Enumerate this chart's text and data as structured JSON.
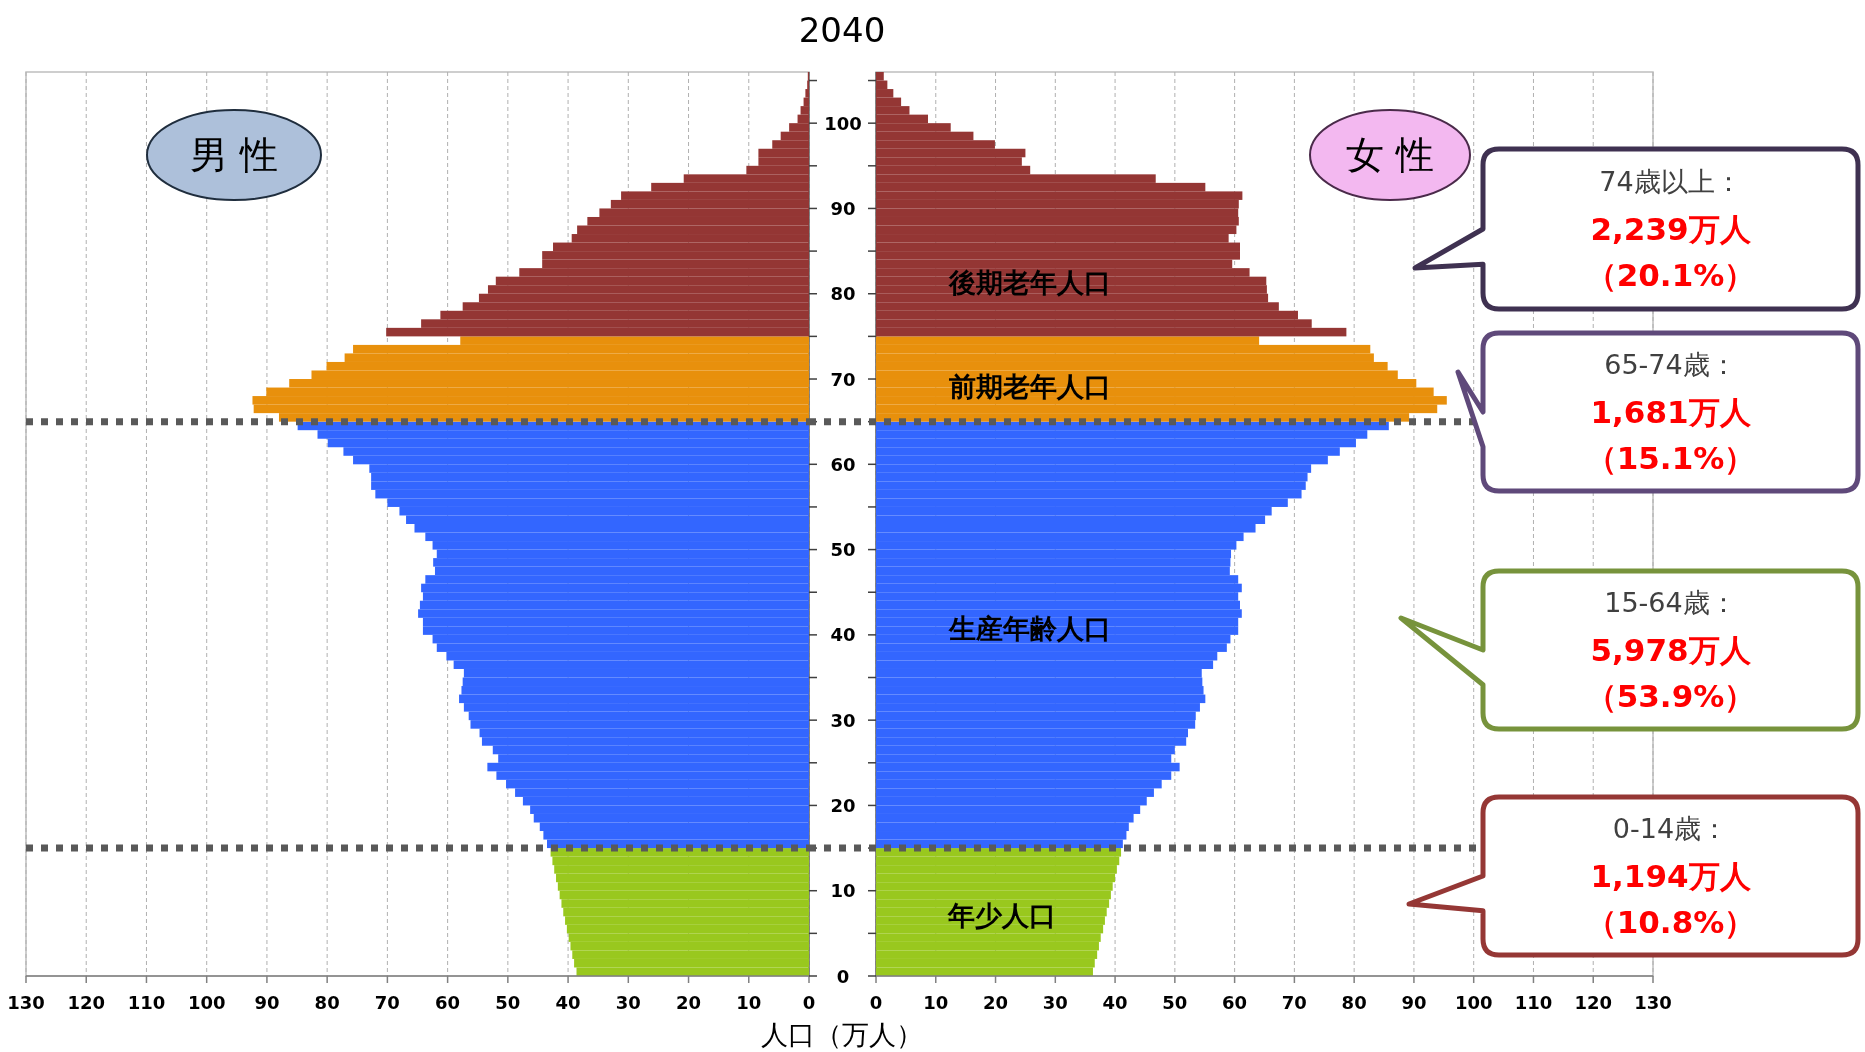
{
  "chart_data": [
    {
      "type": "bar",
      "orientation": "horizontal",
      "title": "2040",
      "subtitle": "男 性",
      "xlim": [
        130,
        0
      ],
      "xticks": [
        130,
        120,
        110,
        100,
        90,
        80,
        70,
        60,
        50,
        40,
        30,
        20,
        10,
        0
      ],
      "ylim": [
        0,
        106
      ],
      "yticks": [
        0,
        {
          "value": 5,
          "label": null
        },
        10,
        {
          "value": 15,
          "label": null
        },
        20,
        {
          "value": 25,
          "label": null
        },
        30,
        {
          "value": 35,
          "label": null
        },
        40,
        {
          "value": 45,
          "label": null
        },
        50,
        {
          "value": 55,
          "label": null
        },
        60,
        {
          "value": 65,
          "label": null
        },
        70,
        {
          "value": 75,
          "label": null
        },
        80,
        {
          "value": 85,
          "label": null
        },
        90,
        {
          "value": 95,
          "label": null
        },
        100,
        {
          "value": 105,
          "label": null
        }
      ],
      "grid": "x",
      "tick_labels": "x",
      "ref_lines": [
        {
          "axis": "y",
          "value": 15,
          "color": "#595959",
          "line_style": "dotted"
        },
        {
          "axis": "y",
          "value": 65,
          "color": "#595959",
          "line_style": "dotted"
        }
      ],
      "series": [
        {
          "color": "#99c81e",
          "x": [
            0,
            1,
            2,
            3,
            4,
            5,
            6,
            7,
            8,
            9,
            10,
            11,
            12,
            13,
            14
          ],
          "values": [
            38.6,
            39.0,
            39.3,
            39.6,
            39.9,
            40.2,
            40.5,
            40.8,
            41.1,
            41.4,
            41.7,
            42.0,
            42.3,
            42.6,
            42.9
          ]
        },
        {
          "color": "#3366ff",
          "x": [
            15,
            16,
            17,
            18,
            19,
            20,
            21,
            22,
            23,
            24,
            25,
            26,
            27,
            28,
            29,
            30,
            31,
            32,
            33,
            34,
            35,
            36,
            37,
            38,
            39,
            40,
            41,
            42,
            43,
            44,
            45,
            46,
            47,
            48,
            49,
            50,
            51,
            52,
            53,
            54,
            55,
            56,
            57,
            58,
            59,
            60,
            61,
            62,
            63,
            64
          ],
          "values": [
            43.5,
            44.1,
            44.7,
            45.7,
            46.3,
            47.5,
            48.8,
            50.3,
            51.9,
            53.4,
            51.6,
            52.5,
            54.3,
            54.7,
            56.2,
            56.5,
            57.3,
            58.1,
            57.7,
            57.5,
            57.3,
            59.0,
            60.2,
            61.8,
            62.5,
            64.1,
            64.1,
            64.9,
            64.6,
            64.1,
            64.4,
            63.7,
            62.1,
            62.4,
            61.8,
            62.5,
            63.7,
            65.5,
            66.9,
            68.0,
            70.0,
            72.0,
            72.7,
            72.7,
            73.0,
            75.7,
            77.3,
            79.9,
            81.6,
            84.9
          ]
        },
        {
          "color": "#e8900c",
          "x": [
            65,
            66,
            67,
            68,
            69,
            70,
            71,
            72,
            73,
            74
          ],
          "values": [
            88.0,
            92.2,
            92.4,
            90.1,
            86.3,
            82.6,
            80.1,
            77.1,
            75.7,
            57.9
          ]
        },
        {
          "color": "#943634",
          "x": [
            75,
            76,
            77,
            78,
            79,
            80,
            81,
            82,
            83,
            84,
            85,
            86,
            87,
            88,
            89,
            90,
            91,
            92,
            93,
            94,
            95,
            96,
            97,
            98,
            99,
            100,
            101,
            102,
            103,
            104,
            105
          ],
          "values": [
            70.2,
            64.4,
            61.2,
            57.5,
            54.8,
            53.3,
            52.0,
            48.1,
            44.3,
            44.3,
            42.5,
            39.4,
            38.5,
            36.8,
            34.8,
            32.9,
            31.2,
            26.2,
            20.8,
            10.4,
            8.4,
            8.4,
            6.1,
            4.7,
            3.3,
            1.9,
            1.4,
            0.9,
            0.6,
            0.3,
            0.2
          ]
        }
      ]
    },
    {
      "type": "bar",
      "orientation": "horizontal",
      "subtitle": "女 性",
      "xlabel": "人口（万人）",
      "xlim": [
        0,
        130
      ],
      "xticks": [
        0,
        10,
        20,
        30,
        40,
        50,
        60,
        70,
        80,
        90,
        100,
        110,
        120,
        130
      ],
      "ylim": [
        0,
        106
      ],
      "yticks": [
        0,
        {
          "value": 5,
          "label": null
        },
        10,
        {
          "value": 15,
          "label": null
        },
        20,
        {
          "value": 25,
          "label": null
        },
        30,
        {
          "value": 35,
          "label": null
        },
        40,
        {
          "value": 45,
          "label": null
        },
        50,
        {
          "value": 55,
          "label": null
        },
        60,
        {
          "value": 65,
          "label": null
        },
        70,
        {
          "value": 75,
          "label": null
        },
        80,
        {
          "value": 85,
          "label": null
        },
        90,
        {
          "value": 95,
          "label": null
        },
        100,
        {
          "value": 105,
          "label": null
        }
      ],
      "grid": "x",
      "ref_lines": [
        {
          "axis": "y",
          "value": 15,
          "color": "#595959",
          "line_style": "dotted"
        },
        {
          "axis": "y",
          "value": 65,
          "color": "#595959",
          "line_style": "dotted"
        }
      ],
      "series": [
        {
          "color": "#99c81e",
          "x": [
            0,
            1,
            2,
            3,
            4,
            5,
            6,
            7,
            8,
            9,
            10,
            11,
            12,
            13,
            14
          ],
          "values": [
            36.3,
            36.6,
            37.0,
            37.3,
            37.6,
            38.0,
            38.3,
            38.6,
            39.0,
            39.3,
            39.6,
            40.0,
            40.3,
            40.7,
            41.0
          ]
        },
        {
          "color": "#3366ff",
          "x": [
            15,
            16,
            17,
            18,
            19,
            20,
            21,
            22,
            23,
            24,
            25,
            26,
            27,
            28,
            29,
            30,
            31,
            32,
            33,
            34,
            35,
            36,
            37,
            38,
            39,
            40,
            41,
            42,
            43,
            44,
            45,
            46,
            47,
            48,
            49,
            50,
            51,
            52,
            53,
            54,
            55,
            56,
            57,
            58,
            59,
            60,
            61,
            62,
            63,
            64
          ],
          "values": [
            41.3,
            41.9,
            42.3,
            43.1,
            44.2,
            45.3,
            46.5,
            47.8,
            49.4,
            50.8,
            49.4,
            50.0,
            51.9,
            52.2,
            53.4,
            53.5,
            54.2,
            55.1,
            54.8,
            54.6,
            54.5,
            56.4,
            57.1,
            58.7,
            59.3,
            60.6,
            60.6,
            61.2,
            60.9,
            60.6,
            61.2,
            60.6,
            59.2,
            59.3,
            59.4,
            60.3,
            61.5,
            63.5,
            65.1,
            66.2,
            68.9,
            71.2,
            71.9,
            72.2,
            72.8,
            75.6,
            77.6,
            80.3,
            82.2,
            85.8
          ]
        },
        {
          "color": "#e8900c",
          "x": [
            65,
            66,
            67,
            68,
            69,
            70,
            71,
            72,
            73,
            74
          ],
          "values": [
            89.2,
            93.9,
            95.5,
            93.3,
            90.4,
            87.3,
            85.6,
            83.3,
            82.7,
            64.1
          ]
        },
        {
          "color": "#943634",
          "x": [
            75,
            76,
            77,
            78,
            79,
            80,
            81,
            82,
            83,
            84,
            85,
            86,
            87,
            88,
            89,
            90,
            91,
            92,
            93,
            94,
            95,
            96,
            97,
            98,
            99,
            100,
            101,
            102,
            103,
            104,
            105
          ],
          "values": [
            78.7,
            72.9,
            70.6,
            67.4,
            65.6,
            65.4,
            65.3,
            62.5,
            59.6,
            60.9,
            60.9,
            59.0,
            60.3,
            60.7,
            60.6,
            60.7,
            61.3,
            55.1,
            46.8,
            25.8,
            24.4,
            25.0,
            19.9,
            16.3,
            12.5,
            8.7,
            5.6,
            4.2,
            2.9,
            1.9,
            1.3
          ]
        }
      ],
      "annotations": [
        "後期老年人口",
        "前期老年人口",
        "生産年齢人口",
        "年少人口",
        "74歳以上：",
        "2,239万人",
        "（20.1%）",
        "65-74歳：",
        "1,681万人",
        "（15.1%）",
        "15-64歳：",
        "5,978万人",
        "（53.9%）",
        "0-14歳：",
        "1,194万人",
        "（10.8%）"
      ]
    }
  ]
}
